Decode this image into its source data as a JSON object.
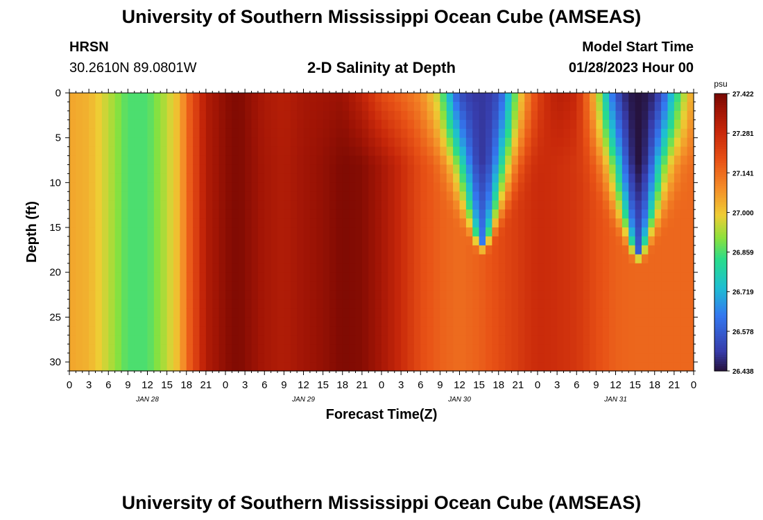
{
  "page": {
    "title": "University of Southern Mississippi Ocean Cube (AMSEAS)",
    "footer_title": "University of Southern Mississippi Ocean Cube (AMSEAS)",
    "station": "HRSN",
    "coords": "30.2610N  89.0801W",
    "model_start_label": "Model Start Time",
    "model_start_value": "01/28/2023 Hour 00"
  },
  "chart_data": {
    "type": "heatmap",
    "title": "2-D Salinity at Depth",
    "xlabel": "Forecast Time(Z)",
    "ylabel": "Depth (ft)",
    "x_range_hours": [
      0,
      96
    ],
    "y_range_ft": [
      0,
      31
    ],
    "x_tick_labels": [
      "0",
      "3",
      "6",
      "9",
      "12",
      "15",
      "18",
      "21",
      "0",
      "3",
      "6",
      "9",
      "12",
      "15",
      "18",
      "21",
      "0",
      "3",
      "6",
      "9",
      "12",
      "15",
      "18",
      "21",
      "0",
      "3",
      "6",
      "9",
      "12",
      "15",
      "18",
      "21",
      "0"
    ],
    "y_ticks": [
      0,
      5,
      10,
      15,
      20,
      25,
      30
    ],
    "date_labels": [
      {
        "label": "JAN 28",
        "hour": 12
      },
      {
        "label": "JAN 29",
        "hour": 36
      },
      {
        "label": "JAN 30",
        "hour": 60
      },
      {
        "label": "JAN 31",
        "hour": 84
      }
    ],
    "colorbar": {
      "unit": "psu",
      "min": 26.438,
      "max": 27.422,
      "tick_labels": [
        "27.422",
        "27.281",
        "27.141",
        "27.000",
        "26.859",
        "26.719",
        "26.578",
        "26.438"
      ]
    },
    "salinity_profile": {
      "hours": [
        0,
        3,
        6,
        9,
        12,
        15,
        17,
        18,
        20,
        21,
        24,
        26,
        30,
        33,
        36,
        39,
        42,
        45,
        48,
        51,
        54,
        57,
        60,
        63,
        66,
        69,
        72,
        75,
        78,
        81,
        84,
        87,
        90,
        93,
        96
      ],
      "surface_psu": [
        27.05,
        27.03,
        26.95,
        26.86,
        26.86,
        26.95,
        27.03,
        27.14,
        27.26,
        27.33,
        27.39,
        27.41,
        27.34,
        27.32,
        27.35,
        27.36,
        27.37,
        27.3,
        27.2,
        27.15,
        27.1,
        27.0,
        26.62,
        26.5,
        26.75,
        27.12,
        27.25,
        27.32,
        27.3,
        27.1,
        26.75,
        26.55,
        26.6,
        26.9,
        27.1
      ],
      "bottom_psu": [
        27.05,
        27.03,
        26.95,
        26.86,
        26.86,
        26.95,
        27.03,
        27.14,
        27.26,
        27.33,
        27.39,
        27.41,
        27.35,
        27.33,
        27.36,
        27.38,
        27.41,
        27.4,
        27.35,
        27.28,
        27.2,
        27.16,
        27.14,
        27.16,
        27.2,
        27.24,
        27.28,
        27.27,
        27.25,
        27.2,
        27.16,
        27.15,
        27.15,
        27.15,
        27.15
      ]
    },
    "fresh_plumes": [
      {
        "center_hour": 63.5,
        "half_width_surface_h": 6,
        "depth_extent_ft": 16.5,
        "min_psu": 26.5
      },
      {
        "center_hour": 87.5,
        "half_width_surface_h": 6,
        "depth_extent_ft": 17.5,
        "min_psu": 26.44
      }
    ]
  }
}
